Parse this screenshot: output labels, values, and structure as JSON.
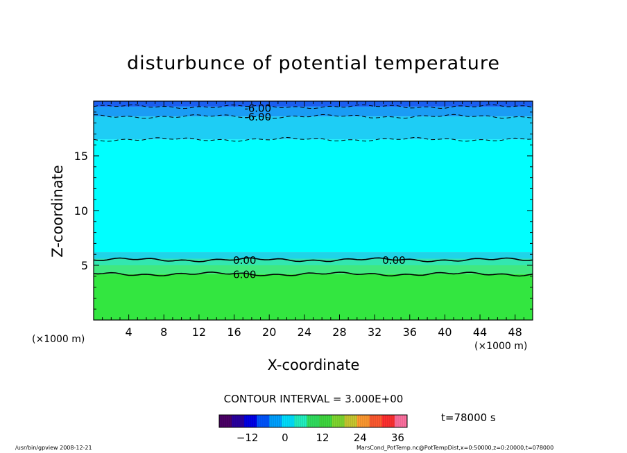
{
  "chart_data": {
    "type": "heatmap",
    "title": "disturbunce of potential temperature",
    "xlabel": "X-coordinate",
    "ylabel": "Z-coordinate",
    "x_unit": "(×1000 m)",
    "xlim": [
      0,
      50
    ],
    "ylim": [
      0,
      20
    ],
    "x_ticks": [
      4,
      8,
      12,
      16,
      20,
      24,
      28,
      32,
      36,
      40,
      44,
      48
    ],
    "y_ticks": [
      5,
      10,
      15
    ],
    "contour_interval_text": "CONTOUR INTERVAL = 3.000E+00",
    "contour_labels": [
      {
        "text": "-6.00",
        "x": 18.7,
        "z": 19.4
      },
      {
        "text": "-6.00",
        "x": 18.7,
        "z": 18.6
      },
      {
        "text": "0.00",
        "x": 17.2,
        "z": 5.5
      },
      {
        "text": "0.00",
        "x": 34.2,
        "z": 5.5
      },
      {
        "text": "6.00",
        "x": 17.2,
        "z": 4.2
      }
    ],
    "contour_lines": [
      {
        "level": -6,
        "style": "dashed",
        "z": 19.5
      },
      {
        "level": -6,
        "style": "dashed",
        "z": 18.6
      },
      {
        "level": -3,
        "style": "dashed",
        "z": 16.5
      },
      {
        "level": 0,
        "style": "solid",
        "z": 5.5
      },
      {
        "level": 6,
        "style": "solid",
        "z": 4.2
      }
    ],
    "field_bands": [
      {
        "z_from": 0,
        "z_to": 4.2,
        "color": "#33e640"
      },
      {
        "z_from": 4.2,
        "z_to": 5.0,
        "color": "#40e880"
      },
      {
        "z_from": 5.0,
        "z_to": 5.6,
        "color": "#33e6b0"
      },
      {
        "z_from": 5.6,
        "z_to": 6.2,
        "color": "#1fd4e8"
      },
      {
        "z_from": 6.2,
        "z_to": 16.5,
        "color": "#00ffff"
      },
      {
        "z_from": 16.5,
        "z_to": 18.6,
        "color": "#1ecdf5"
      },
      {
        "z_from": 18.6,
        "z_to": 19.5,
        "color": "#1a9cf5"
      },
      {
        "z_from": 19.5,
        "z_to": 20,
        "color": "#1a5ef0"
      }
    ],
    "colorbar": {
      "ticks": [
        -12,
        0,
        12,
        24,
        36
      ],
      "range": [
        -21,
        39
      ],
      "colors": [
        "#4a0066",
        "#2a00a0",
        "#0000e6",
        "#0055ff",
        "#00a0ff",
        "#00e0ff",
        "#20f0c0",
        "#30e060",
        "#40d840",
        "#80d830",
        "#c8c830",
        "#ff9a30",
        "#ff5a30",
        "#ff3030",
        "#ff70a0"
      ]
    },
    "time_label": "t=78000 s"
  },
  "footer": {
    "left": "/usr/bin/gpview   2008-12-21",
    "right": "MarsCond_PotTemp.nc@PotTempDist,x=0:50000,z=0:20000,t=078000"
  }
}
